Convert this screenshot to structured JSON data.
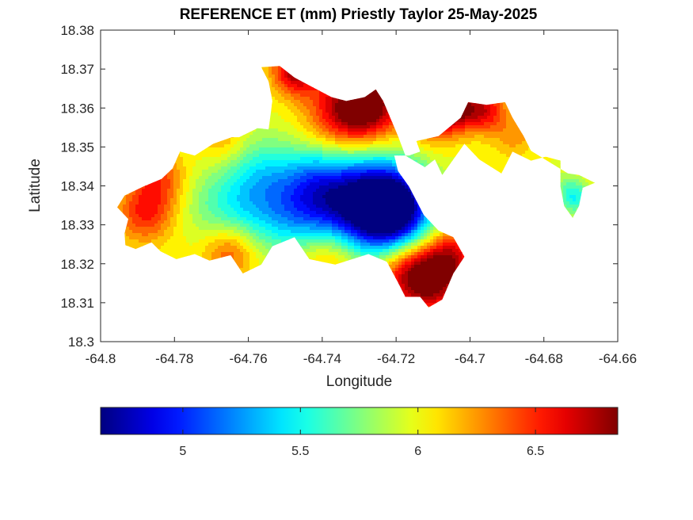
{
  "chart_data": {
    "type": "heatmap",
    "title": "REFERENCE ET (mm) Priestly Taylor 25-May-2025",
    "xlabel": "Longitude",
    "ylabel": "Latitude",
    "xlim": [
      -64.8,
      -64.66
    ],
    "ylim": [
      18.3,
      18.38
    ],
    "x_ticks": [
      "-64.8",
      "-64.78",
      "-64.76",
      "-64.74",
      "-64.72",
      "-64.7",
      "-64.68",
      "-64.66"
    ],
    "x_tick_values": [
      -64.8,
      -64.78,
      -64.76,
      -64.74,
      -64.72,
      -64.7,
      -64.68,
      -64.66
    ],
    "y_ticks": [
      "18.3",
      "18.31",
      "18.32",
      "18.33",
      "18.34",
      "18.35",
      "18.36",
      "18.37",
      "18.38"
    ],
    "y_tick_values": [
      18.3,
      18.31,
      18.32,
      18.33,
      18.34,
      18.35,
      18.36,
      18.37,
      18.38
    ],
    "colorbar": {
      "colormap": "jet",
      "range": [
        4.65,
        6.85
      ],
      "ticks": [
        "5",
        "5.5",
        "6",
        "6.5"
      ],
      "tick_values": [
        5,
        5.5,
        6,
        6.5
      ]
    },
    "colormap_colors": [
      "#00008f",
      "#0000ff",
      "#00ffff",
      "#ffff00",
      "#ff0000",
      "#800000"
    ],
    "grid": false,
    "field": {
      "base_value": 6.0,
      "outline": [
        [
          -64.7933,
          18.3248
        ],
        [
          -64.7905,
          18.3238
        ],
        [
          -64.7862,
          18.3255
        ],
        [
          -64.7838,
          18.3232
        ],
        [
          -64.7795,
          18.3212
        ],
        [
          -64.7745,
          18.3225
        ],
        [
          -64.7705,
          18.3208
        ],
        [
          -64.7648,
          18.3222
        ],
        [
          -64.7615,
          18.3175
        ],
        [
          -64.7565,
          18.3198
        ],
        [
          -64.7535,
          18.3245
        ],
        [
          -64.7475,
          18.3268
        ],
        [
          -64.7435,
          18.3212
        ],
        [
          -64.7365,
          18.3198
        ],
        [
          -64.7275,
          18.3225
        ],
        [
          -64.7225,
          18.3205
        ],
        [
          -64.7195,
          18.3152
        ],
        [
          -64.7175,
          18.3115
        ],
        [
          -64.7135,
          18.3115
        ],
        [
          -64.7112,
          18.3088
        ],
        [
          -64.7075,
          18.3108
        ],
        [
          -64.7045,
          18.3175
        ],
        [
          -64.7015,
          18.3218
        ],
        [
          -64.7045,
          18.3268
        ],
        [
          -64.7085,
          18.3285
        ],
        [
          -64.7125,
          18.3325
        ],
        [
          -64.7165,
          18.3398
        ],
        [
          -64.7195,
          18.3438
        ],
        [
          -64.7205,
          18.3478
        ],
        [
          -64.7165,
          18.3478
        ],
        [
          -64.7135,
          18.3488
        ],
        [
          -64.7145,
          18.3515
        ],
        [
          -64.7085,
          18.3528
        ],
        [
          -64.7025,
          18.3575
        ],
        [
          -64.7005,
          18.3615
        ],
        [
          -64.6955,
          18.3608
        ],
        [
          -64.6905,
          18.3615
        ],
        [
          -64.6885,
          18.3575
        ],
        [
          -64.6855,
          18.3528
        ],
        [
          -64.6835,
          18.349
        ],
        [
          -64.6735,
          18.3432
        ],
        [
          -64.6705,
          18.3428
        ],
        [
          -64.6662,
          18.3408
        ],
        [
          -64.6695,
          18.3395
        ],
        [
          -64.6705,
          18.3348
        ],
        [
          -64.6722,
          18.3318
        ],
        [
          -64.6745,
          18.3348
        ],
        [
          -64.6755,
          18.3398
        ],
        [
          -64.6755,
          18.3465
        ],
        [
          -64.6795,
          18.3475
        ],
        [
          -64.6835,
          18.3465
        ],
        [
          -64.6885,
          18.3488
        ],
        [
          -64.6915,
          18.3432
        ],
        [
          -64.6975,
          18.3468
        ],
        [
          -64.7015,
          18.3508
        ],
        [
          -64.7075,
          18.3428
        ],
        [
          -64.7095,
          18.3468
        ],
        [
          -64.7122,
          18.3448
        ],
        [
          -64.7175,
          18.3478
        ],
        [
          -64.7195,
          18.3528
        ],
        [
          -64.7235,
          18.3618
        ],
        [
          -64.7255,
          18.3648
        ],
        [
          -64.7285,
          18.3628
        ],
        [
          -64.7335,
          18.3618
        ],
        [
          -64.7375,
          18.3628
        ],
        [
          -64.7435,
          18.3658
        ],
        [
          -64.7475,
          18.3678
        ],
        [
          -64.7515,
          18.3708
        ],
        [
          -64.7565,
          18.3705
        ],
        [
          -64.7545,
          18.3668
        ],
        [
          -64.7535,
          18.3618
        ],
        [
          -64.7545,
          18.3545
        ],
        [
          -64.7575,
          18.3548
        ],
        [
          -64.7625,
          18.3525
        ],
        [
          -64.7645,
          18.3525
        ],
        [
          -64.7695,
          18.3508
        ],
        [
          -64.7745,
          18.3478
        ],
        [
          -64.7785,
          18.3488
        ],
        [
          -64.7805,
          18.3445
        ],
        [
          -64.7835,
          18.3418
        ],
        [
          -64.7885,
          18.3398
        ],
        [
          -64.7935,
          18.3375
        ],
        [
          -64.7955,
          18.3345
        ],
        [
          -64.7925,
          18.3315
        ],
        [
          -64.7935,
          18.3278
        ]
      ],
      "anomalies": [
        {
          "lon": -64.7205,
          "lat": 18.334,
          "value": -1.2,
          "radius": 0.007
        },
        {
          "lon": -64.7265,
          "lat": 18.335,
          "value": -0.85,
          "radius": 0.009
        },
        {
          "lon": -64.7345,
          "lat": 18.336,
          "value": -0.55,
          "radius": 0.008
        },
        {
          "lon": -64.745,
          "lat": 18.333,
          "value": -0.4,
          "radius": 0.007
        },
        {
          "lon": -64.742,
          "lat": 18.342,
          "value": -0.35,
          "radius": 0.006
        },
        {
          "lon": -64.753,
          "lat": 18.333,
          "value": -0.25,
          "radius": 0.008
        },
        {
          "lon": -64.759,
          "lat": 18.339,
          "value": -0.25,
          "radius": 0.008
        },
        {
          "lon": -64.755,
          "lat": 18.344,
          "value": -0.25,
          "radius": 0.007
        },
        {
          "lon": -64.765,
          "lat": 18.333,
          "value": -0.2,
          "radius": 0.007
        },
        {
          "lon": -64.772,
          "lat": 18.336,
          "value": -0.1,
          "radius": 0.006
        },
        {
          "lon": -64.6718,
          "lat": 18.337,
          "value": -0.5,
          "radius": 0.003
        },
        {
          "lon": -64.6745,
          "lat": 18.341,
          "value": -0.1,
          "radius": 0.0025
        },
        {
          "lon": -64.727,
          "lat": 18.361,
          "value": 0.8,
          "radius": 0.0065
        },
        {
          "lon": -64.735,
          "lat": 18.359,
          "value": 0.55,
          "radius": 0.007
        },
        {
          "lon": -64.747,
          "lat": 18.37,
          "value": 0.8,
          "radius": 0.0045
        },
        {
          "lon": -64.71,
          "lat": 18.358,
          "value": 0.5,
          "radius": 0.005
        },
        {
          "lon": -64.704,
          "lat": 18.36,
          "value": 0.7,
          "radius": 0.004
        },
        {
          "lon": -64.696,
          "lat": 18.3595,
          "value": 0.6,
          "radius": 0.004
        },
        {
          "lon": -64.788,
          "lat": 18.333,
          "value": 0.5,
          "radius": 0.0055
        },
        {
          "lon": -64.784,
          "lat": 18.342,
          "value": 0.4,
          "radius": 0.005
        },
        {
          "lon": -64.765,
          "lat": 18.323,
          "value": 0.45,
          "radius": 0.005
        },
        {
          "lon": -64.717,
          "lat": 18.318,
          "value": 0.6,
          "radius": 0.006
        },
        {
          "lon": -64.71,
          "lat": 18.315,
          "value": 0.65,
          "radius": 0.006
        },
        {
          "lon": -64.705,
          "lat": 18.322,
          "value": 0.55,
          "radius": 0.005
        },
        {
          "lon": -64.738,
          "lat": 18.3225,
          "value": 0.35,
          "radius": 0.006
        },
        {
          "lon": -64.767,
          "lat": 18.352,
          "value": 0.25,
          "radius": 0.0045
        },
        {
          "lon": -64.688,
          "lat": 18.353,
          "value": 0.25,
          "radius": 0.004
        }
      ]
    }
  }
}
